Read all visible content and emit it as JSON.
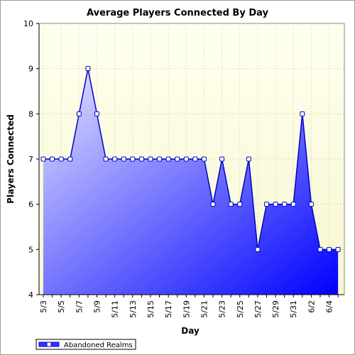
{
  "chart_data": {
    "type": "area",
    "title": "Average Players Connected By Day",
    "xlabel": "Day",
    "ylabel": "Players Connected",
    "ylim": [
      4,
      10
    ],
    "yticks": [
      4,
      5,
      6,
      7,
      8,
      9,
      10
    ],
    "grid": true,
    "legend_position": "bottom-left",
    "x": [
      "5/3",
      "5/4",
      "5/5",
      "5/6",
      "5/7",
      "5/8",
      "5/9",
      "5/10",
      "5/11",
      "5/12",
      "5/13",
      "5/14",
      "5/15",
      "5/16",
      "5/17",
      "5/18",
      "5/19",
      "5/20",
      "5/21",
      "5/22",
      "5/23",
      "5/24",
      "5/25",
      "5/26",
      "5/27",
      "5/28",
      "5/29",
      "5/30",
      "5/31",
      "6/1",
      "6/2",
      "6/3",
      "6/4",
      "6/5"
    ],
    "x_tick_labels": [
      "5/3",
      "5/5",
      "5/7",
      "5/9",
      "5/11",
      "5/13",
      "5/15",
      "5/17",
      "5/19",
      "5/21",
      "5/23",
      "5/25",
      "5/27",
      "5/29",
      "5/31",
      "6/2",
      "6/4"
    ],
    "series": [
      {
        "name": "Abandoned Realms",
        "values": [
          7,
          7,
          7,
          7,
          8,
          9,
          8,
          7,
          7,
          7,
          7,
          7,
          7,
          7,
          7,
          7,
          7,
          7,
          7,
          6,
          7,
          6,
          6,
          7,
          5,
          6,
          6,
          6,
          6,
          8,
          6,
          5,
          5,
          5
        ]
      }
    ],
    "colors": {
      "plot_background_top": "#fffff0",
      "plot_background_bottom": "#f7f7d0",
      "area_light": "#e6e6ff",
      "area_dark": "#0000ff",
      "line": "#0000cc",
      "marker_fill": "#ffffff",
      "grid": "#c8c8a0"
    }
  }
}
